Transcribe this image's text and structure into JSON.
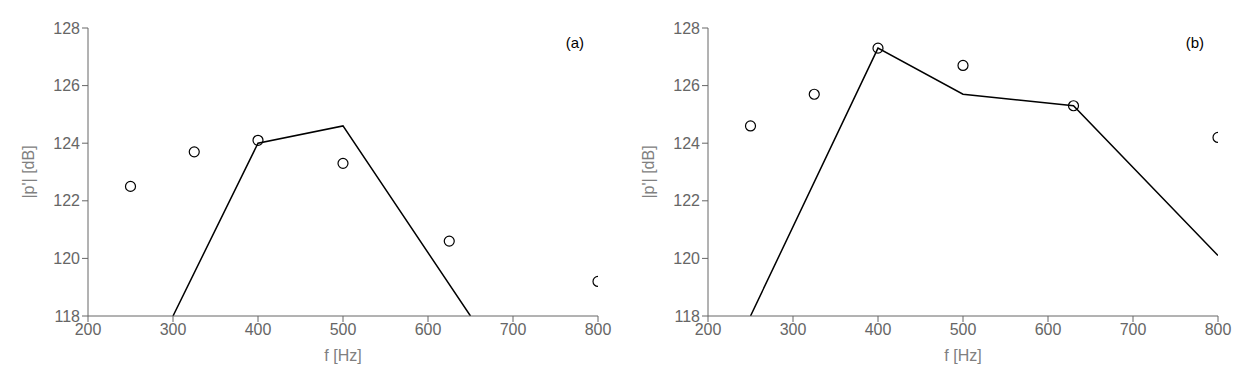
{
  "chart_data": [
    {
      "type": "line",
      "annotations": [
        "(a)"
      ],
      "x_label": "f [Hz]",
      "y_label": "|p'| [dB]",
      "xlim": [
        200,
        800
      ],
      "ylim": [
        118,
        128
      ],
      "xticks": [
        200,
        300,
        400,
        500,
        600,
        700,
        800
      ],
      "yticks": [
        118,
        120,
        122,
        124,
        126,
        128
      ],
      "grid": false,
      "series": [
        {
          "type": "line",
          "color": "#000000",
          "line_style": "solid",
          "x": [
            300,
            400,
            500,
            650
          ],
          "values": [
            118.0,
            124.0,
            124.6,
            118.0
          ]
        },
        {
          "type": "scatter",
          "color": "#000000",
          "marker": "open-circle",
          "x": [
            250,
            325,
            400,
            500,
            625,
            800
          ],
          "values": [
            122.5,
            123.7,
            124.1,
            123.3,
            120.6,
            119.2
          ]
        }
      ]
    },
    {
      "type": "line",
      "annotations": [
        "(b)"
      ],
      "x_label": "f [Hz]",
      "y_label": "|p'| [dB]",
      "xlim": [
        200,
        800
      ],
      "ylim": [
        118,
        128
      ],
      "xticks": [
        200,
        300,
        400,
        500,
        600,
        700,
        800
      ],
      "yticks": [
        118,
        120,
        122,
        124,
        126,
        128
      ],
      "grid": false,
      "series": [
        {
          "type": "line",
          "color": "#000000",
          "line_style": "solid",
          "x": [
            250,
            400,
            500,
            630,
            800
          ],
          "values": [
            118.0,
            127.3,
            125.7,
            125.3,
            120.1
          ]
        },
        {
          "type": "scatter",
          "color": "#000000",
          "marker": "open-circle",
          "x": [
            250,
            325,
            400,
            500,
            630,
            800
          ],
          "values": [
            124.6,
            125.7,
            127.3,
            126.7,
            125.3,
            124.2
          ]
        }
      ]
    }
  ]
}
